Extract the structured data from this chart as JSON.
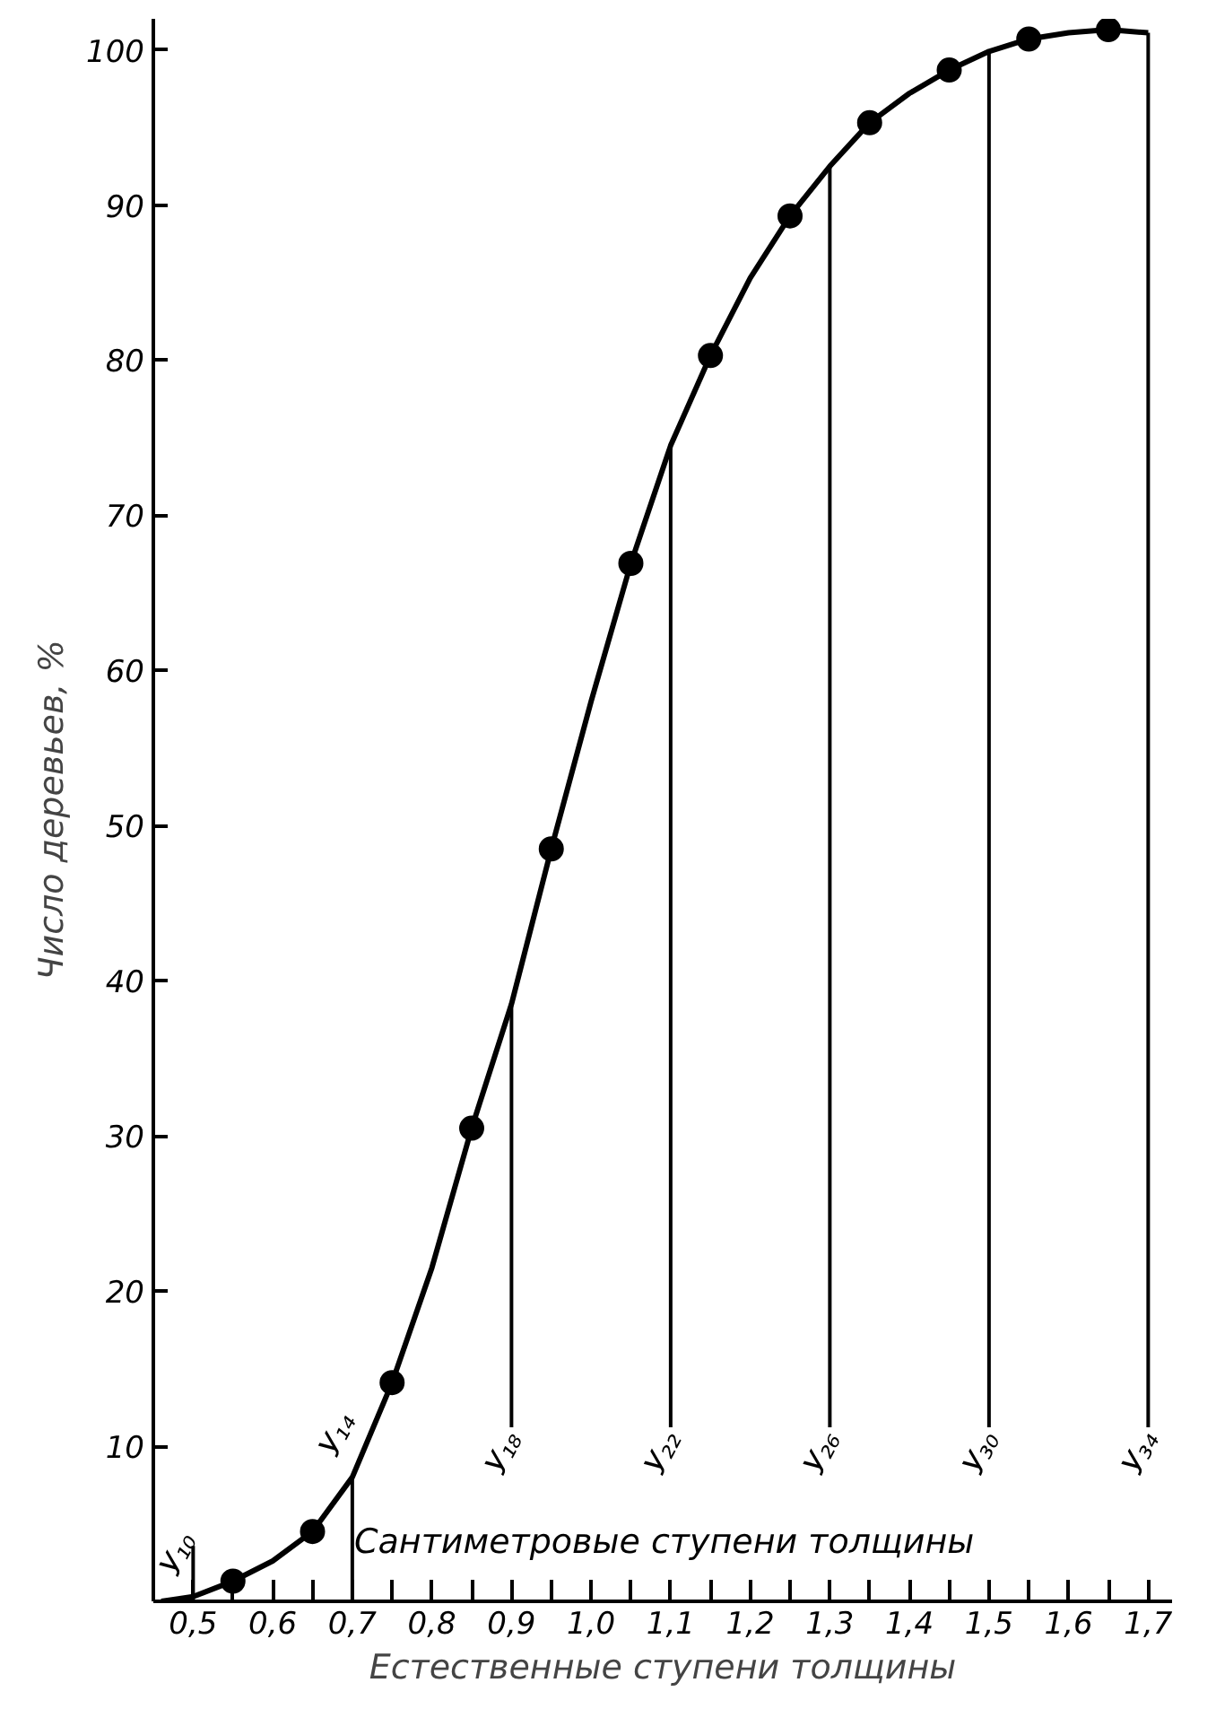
{
  "chart_data": {
    "type": "line",
    "xlabel": "Естественные ступени толщины",
    "ylabel": "Число деревьев, %",
    "annotations": [
      "Сантиметровые ступени толщины"
    ],
    "xlim": [
      0.45,
      1.73
    ],
    "ylim": [
      0,
      102
    ],
    "xticks": [
      {
        "value": 0.5,
        "label": "0,5"
      },
      {
        "value": 0.55,
        "label": null
      },
      {
        "value": 0.6,
        "label": "0,6"
      },
      {
        "value": 0.65,
        "label": null
      },
      {
        "value": 0.7,
        "label": "0,7"
      },
      {
        "value": 0.75,
        "label": null
      },
      {
        "value": 0.8,
        "label": "0,8"
      },
      {
        "value": 0.85,
        "label": null
      },
      {
        "value": 0.9,
        "label": "0,9"
      },
      {
        "value": 0.95,
        "label": null
      },
      {
        "value": 1.0,
        "label": "1,0"
      },
      {
        "value": 1.05,
        "label": null
      },
      {
        "value": 1.1,
        "label": "1,1"
      },
      {
        "value": 1.15,
        "label": null
      },
      {
        "value": 1.2,
        "label": "1,2"
      },
      {
        "value": 1.25,
        "label": null
      },
      {
        "value": 1.3,
        "label": "1,3"
      },
      {
        "value": 1.35,
        "label": null
      },
      {
        "value": 1.4,
        "label": "1,4"
      },
      {
        "value": 1.45,
        "label": null
      },
      {
        "value": 1.5,
        "label": "1,5"
      },
      {
        "value": 1.55,
        "label": null
      },
      {
        "value": 1.6,
        "label": "1,6"
      },
      {
        "value": 1.65,
        "label": null
      },
      {
        "value": 1.7,
        "label": "1,7"
      }
    ],
    "yticks": [
      10,
      20,
      30,
      40,
      50,
      60,
      70,
      80,
      90,
      100
    ],
    "grid": false,
    "series": [
      {
        "color": "#000000",
        "marker": "none",
        "line_style": "solid",
        "x": [
          0.46,
          0.5,
          0.55,
          0.6,
          0.65,
          0.7,
          0.75,
          0.8,
          0.85,
          0.9,
          0.95,
          1.0,
          1.05,
          1.1,
          1.15,
          1.2,
          1.25,
          1.3,
          1.35,
          1.4,
          1.45,
          1.5,
          1.55,
          1.6,
          1.65,
          1.7
        ],
        "values": [
          0,
          0.3,
          1.3,
          2.6,
          4.5,
          8,
          14.1,
          21.5,
          30.5,
          38.5,
          48.5,
          58,
          66.9,
          74.5,
          80.3,
          85.3,
          89.3,
          92.5,
          95.3,
          97.2,
          98.7,
          99.9,
          100.7,
          101.1,
          101.3,
          101.1
        ]
      },
      {
        "type": "scatter",
        "color": "#000000",
        "marker": "circle",
        "x": [
          0.55,
          0.65,
          0.75,
          0.85,
          0.95,
          1.05,
          1.15,
          1.25,
          1.35,
          1.45,
          1.55,
          1.65
        ],
        "values": [
          1.3,
          4.5,
          14.1,
          30.5,
          48.5,
          66.9,
          80.3,
          89.3,
          95.3,
          98.7,
          100.7,
          101.3
        ]
      }
    ],
    "ref_lines": [
      {
        "axis": "x",
        "value": 0.5,
        "label": "У₁₀",
        "color": "#000000"
      },
      {
        "axis": "x",
        "value": 0.7,
        "label": "У₁₄",
        "color": "#000000"
      },
      {
        "axis": "x",
        "value": 0.9,
        "label": "У₁₈",
        "color": "#000000"
      },
      {
        "axis": "x",
        "value": 1.1,
        "label": "У₂₂",
        "color": "#000000"
      },
      {
        "axis": "x",
        "value": 1.3,
        "label": "У₂₆",
        "color": "#000000"
      },
      {
        "axis": "x",
        "value": 1.5,
        "label": "У₃₀",
        "color": "#000000"
      },
      {
        "axis": "x",
        "value": 1.7,
        "label": "У₃₄",
        "color": "#000000"
      }
    ]
  }
}
